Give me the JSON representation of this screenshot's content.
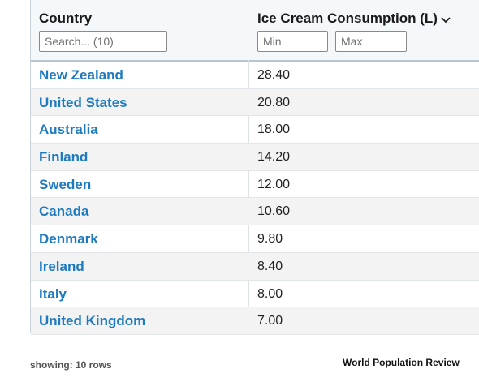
{
  "table": {
    "columns": {
      "country": "Country",
      "consumption": "Ice Cream Consumption (L)"
    },
    "filters": {
      "search_placeholder": "Search... (10)",
      "min_placeholder": "Min",
      "max_placeholder": "Max"
    },
    "sort_icon": "chevron-down-icon",
    "rows": [
      {
        "country": "New Zealand",
        "consumption": "28.40"
      },
      {
        "country": "United States",
        "consumption": "20.80"
      },
      {
        "country": "Australia",
        "consumption": "18.00"
      },
      {
        "country": "Finland",
        "consumption": "14.20"
      },
      {
        "country": "Sweden",
        "consumption": "12.00"
      },
      {
        "country": "Canada",
        "consumption": "10.60"
      },
      {
        "country": "Denmark",
        "consumption": "9.80"
      },
      {
        "country": "Ireland",
        "consumption": "8.40"
      },
      {
        "country": "Italy",
        "consumption": "8.00"
      },
      {
        "country": "United Kingdom",
        "consumption": "7.00"
      }
    ]
  },
  "footer": {
    "row_count": "showing: 10 rows",
    "source": "World Population Review"
  },
  "colors": {
    "link": "#1f7bbf",
    "header_bg": "#f4f8fb",
    "alt_row": "#f3f3f3"
  }
}
